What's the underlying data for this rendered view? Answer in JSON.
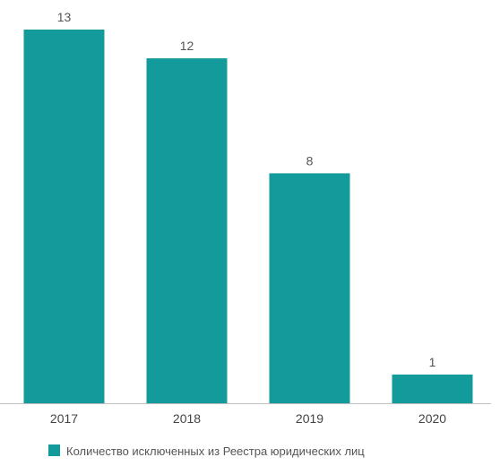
{
  "chart_data": {
    "type": "bar",
    "categories": [
      "2017",
      "2018",
      "2019",
      "2020"
    ],
    "series": [
      {
        "name": "Количество исключенных из Реестра юридических лиц",
        "values": [
          13,
          12,
          8,
          1
        ]
      }
    ],
    "ylim": [
      0,
      13
    ],
    "grid": false,
    "legend": "bottom-left",
    "data_labels": true,
    "bar_color": "#139b9b"
  }
}
